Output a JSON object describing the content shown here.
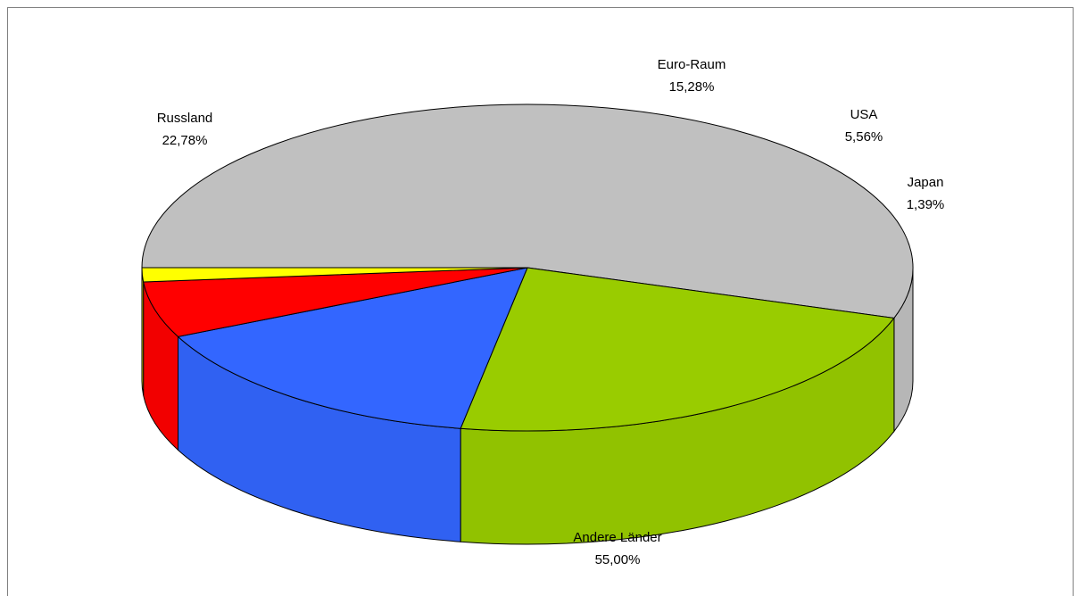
{
  "chart_data": {
    "type": "pie",
    "style": "3d",
    "title": "",
    "slices": [
      {
        "label": "Andere Länder",
        "value": 55.0,
        "value_label": "55,00%",
        "color": "#c0c0c0"
      },
      {
        "label": "Russland",
        "value": 22.78,
        "value_label": "22,78%",
        "color": "#99cc00"
      },
      {
        "label": "Euro-Raum",
        "value": 15.28,
        "value_label": "15,28%",
        "color": "#3366ff"
      },
      {
        "label": "USA",
        "value": 5.56,
        "value_label": "5,56%",
        "color": "#ff0000"
      },
      {
        "label": "Japan",
        "value": 1.39,
        "value_label": "1,39%",
        "color": "#ffff00"
      }
    ]
  }
}
